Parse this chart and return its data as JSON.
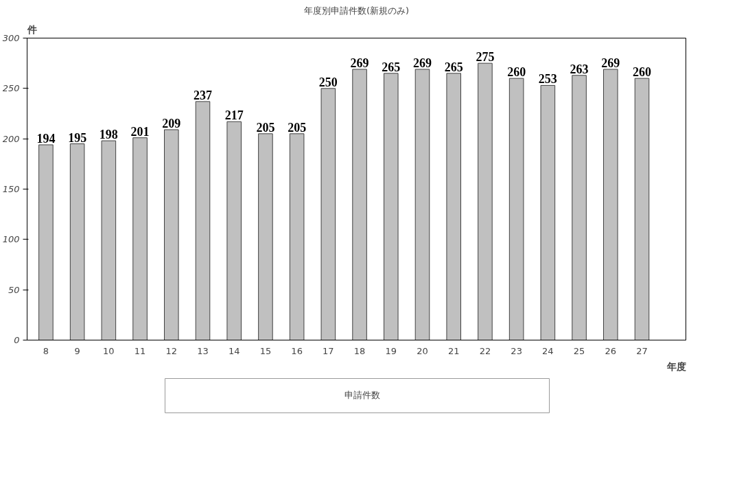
{
  "chart_data": {
    "type": "bar",
    "title": "年度別申請件数(新規のみ)",
    "ylabel": "件",
    "xlabel": "年度",
    "categories": [
      "8",
      "9",
      "10",
      "11",
      "12",
      "13",
      "14",
      "15",
      "16",
      "17",
      "18",
      "19",
      "20",
      "21",
      "22",
      "23",
      "24",
      "25",
      "26",
      "27"
    ],
    "series": [
      {
        "name": "申請件数",
        "color": "#c0c0c0",
        "values": [
          194,
          195,
          198,
          201,
          209,
          237,
          217,
          205,
          205,
          250,
          269,
          265,
          269,
          265,
          275,
          260,
          253,
          263,
          269,
          260
        ]
      }
    ],
    "ylim": [
      0,
      300
    ],
    "yticks": [
      0,
      50,
      100,
      150,
      200,
      250,
      300
    ],
    "grid": false,
    "legend": "bottom",
    "data_labels": true
  }
}
